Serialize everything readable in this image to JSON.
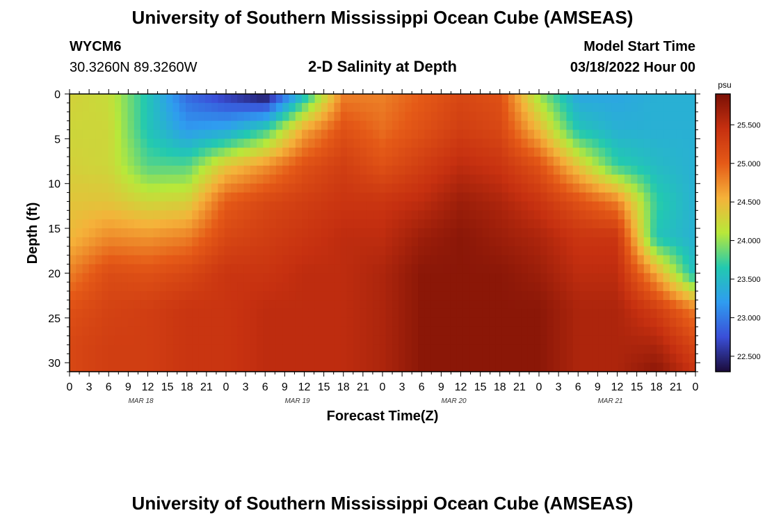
{
  "page": {
    "title": "University of Southern Mississippi Ocean Cube (AMSEAS)",
    "station_id": "WYCM6",
    "coordinates": "30.3260N  89.3260W",
    "subtitle": "2-D Salinity at Depth",
    "start_label": "Model Start Time",
    "start_value": "03/18/2022 Hour 00",
    "footer_title": "University of Southern Mississippi Ocean Cube (AMSEAS)"
  },
  "chart_data": {
    "type": "heatmap",
    "title": "2-D Salinity at Depth",
    "xlabel": "Forecast Time(Z)",
    "ylabel": "Depth (ft)",
    "x_tick_labels": [
      "0",
      "3",
      "6",
      "9",
      "12",
      "15",
      "18",
      "21",
      "0",
      "3",
      "6",
      "9",
      "12",
      "15",
      "18",
      "21",
      "0",
      "3",
      "6",
      "9",
      "12",
      "15",
      "18",
      "21",
      "0",
      "3",
      "6",
      "9",
      "12",
      "15",
      "18",
      "21",
      "0"
    ],
    "date_labels": [
      {
        "label": "MAR 18",
        "tick_index": 4
      },
      {
        "label": "MAR 19",
        "tick_index": 12
      },
      {
        "label": "MAR 20",
        "tick_index": 20
      },
      {
        "label": "MAR 21",
        "tick_index": 28
      }
    ],
    "x_range_hours": [
      0,
      96
    ],
    "y_ticks": [
      0,
      5,
      10,
      15,
      20,
      25,
      30
    ],
    "ylim": [
      0,
      31
    ],
    "y_inverted": true,
    "colorbar": {
      "unit": "psu",
      "range": [
        22.3,
        25.9
      ],
      "ticks": [
        "22.500",
        "23.000",
        "23.500",
        "24.000",
        "24.500",
        "25.000",
        "25.500"
      ],
      "tick_values": [
        22.5,
        23.0,
        23.5,
        24.0,
        24.5,
        25.0,
        25.5
      ],
      "colors": [
        "#1b0b3a",
        "#3a4fd8",
        "#2f9cf0",
        "#22c9b0",
        "#b8e83a",
        "#f5b23a",
        "#e55a17",
        "#c63010",
        "#7a1005"
      ]
    },
    "salinity_profiles": [
      {
        "hour": 0,
        "values": [
          24.3,
          24.25,
          24.3,
          24.4,
          24.5,
          24.8,
          25.1,
          25.2,
          25.2
        ]
      },
      {
        "hour": 6,
        "values": [
          24.2,
          24.25,
          24.25,
          24.4,
          24.75,
          25.15,
          25.25,
          25.3,
          25.3
        ]
      },
      {
        "hour": 12,
        "values": [
          23.6,
          23.6,
          23.8,
          24.25,
          24.7,
          25.1,
          25.3,
          25.3,
          25.3
        ]
      },
      {
        "hour": 18,
        "values": [
          22.9,
          23.2,
          23.8,
          24.3,
          24.8,
          25.2,
          25.4,
          25.4,
          25.4
        ]
      },
      {
        "hour": 24,
        "values": [
          22.6,
          23.3,
          24.4,
          25.0,
          25.2,
          25.4,
          25.4,
          25.4,
          25.4
        ]
      },
      {
        "hour": 30,
        "values": [
          22.3,
          23.7,
          24.7,
          25.2,
          25.3,
          25.4,
          25.5,
          25.5,
          25.5
        ]
      },
      {
        "hour": 36,
        "values": [
          23.5,
          24.6,
          25.1,
          25.3,
          25.4,
          25.5,
          25.5,
          25.5,
          25.5
        ]
      },
      {
        "hour": 42,
        "values": [
          24.8,
          25.1,
          25.3,
          25.4,
          25.5,
          25.5,
          25.5,
          25.5,
          25.5
        ]
      },
      {
        "hour": 48,
        "values": [
          24.8,
          24.9,
          25.1,
          25.4,
          25.5,
          25.6,
          25.6,
          25.6,
          25.6
        ]
      },
      {
        "hour": 54,
        "values": [
          25.0,
          25.1,
          25.3,
          25.5,
          25.7,
          25.8,
          25.8,
          25.8,
          25.8
        ]
      },
      {
        "hour": 60,
        "values": [
          25.2,
          25.3,
          25.5,
          25.7,
          25.8,
          25.8,
          25.8,
          25.8,
          25.8
        ]
      },
      {
        "hour": 66,
        "values": [
          25.1,
          25.2,
          25.4,
          25.6,
          25.7,
          25.8,
          25.8,
          25.8,
          25.8
        ]
      },
      {
        "hour": 72,
        "values": [
          24.0,
          24.5,
          25.1,
          25.4,
          25.6,
          25.7,
          25.8,
          25.8,
          25.8
        ]
      },
      {
        "hour": 78,
        "values": [
          23.3,
          23.6,
          24.4,
          25.1,
          25.4,
          25.5,
          25.6,
          25.6,
          25.6
        ]
      },
      {
        "hour": 84,
        "values": [
          23.3,
          23.4,
          23.7,
          24.8,
          25.4,
          25.5,
          25.6,
          25.6,
          25.6
        ]
      },
      {
        "hour": 90,
        "values": [
          23.4,
          23.4,
          23.5,
          23.7,
          23.6,
          24.6,
          25.3,
          25.6,
          25.8
        ]
      },
      {
        "hour": 96,
        "values": [
          23.4,
          23.4,
          23.4,
          23.4,
          23.4,
          23.5,
          24.8,
          25.2,
          25.4
        ]
      }
    ],
    "profile_depths_ft": [
      0,
      4,
      8,
      12,
      16,
      20,
      24,
      28,
      31
    ]
  }
}
